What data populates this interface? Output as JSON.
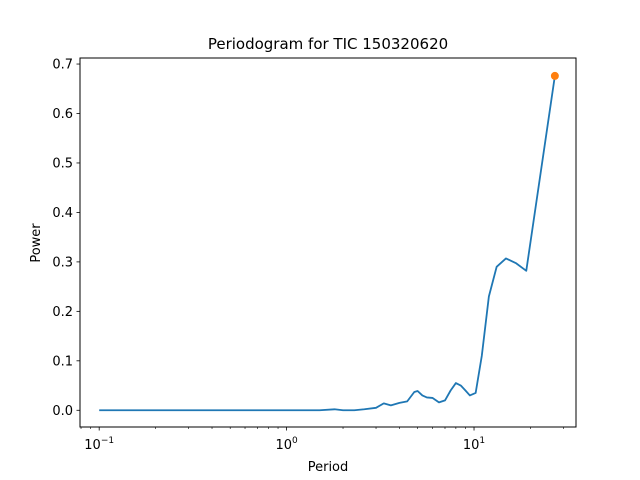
{
  "chart_data": {
    "type": "line",
    "title": "Periodogram for TIC 150320620",
    "xlabel": "Period",
    "ylabel": "Power",
    "xscale": "log",
    "xlim": [
      0.079,
      35
    ],
    "ylim": [
      -0.0338,
      0.7122
    ],
    "xticks": [
      {
        "value": 0.1,
        "base": "10",
        "exp": "−1"
      },
      {
        "value": 1,
        "base": "10",
        "exp": "0"
      },
      {
        "value": 10,
        "base": "10",
        "exp": "1"
      }
    ],
    "yticks": [
      {
        "value": 0.0,
        "label": "0.0"
      },
      {
        "value": 0.1,
        "label": "0.1"
      },
      {
        "value": 0.2,
        "label": "0.2"
      },
      {
        "value": 0.3,
        "label": "0.3"
      },
      {
        "value": 0.4,
        "label": "0.4"
      },
      {
        "value": 0.5,
        "label": "0.5"
      },
      {
        "value": 0.6,
        "label": "0.6"
      },
      {
        "value": 0.7,
        "label": "0.7"
      }
    ],
    "grid": false,
    "series": [
      {
        "color": "#1f77b4",
        "x": [
          0.1,
          0.2,
          0.3,
          0.5,
          0.7,
          0.9,
          1.0,
          1.2,
          1.5,
          1.8,
          2.0,
          2.3,
          2.6,
          3.0,
          3.3,
          3.6,
          4.0,
          4.4,
          4.8,
          5.0,
          5.3,
          5.6,
          6.0,
          6.5,
          7.0,
          7.5,
          8.0,
          8.5,
          9.0,
          9.5,
          10.2,
          11.0,
          12.0,
          13.2,
          14.8,
          16.8,
          19.0,
          27.0
        ],
        "y": [
          0.0,
          0.0,
          0.0,
          0.0,
          0.0,
          0.0,
          0.0,
          0.0,
          0.0,
          0.002,
          0.0,
          0.0,
          0.002,
          0.005,
          0.014,
          0.01,
          0.015,
          0.018,
          0.037,
          0.039,
          0.03,
          0.026,
          0.025,
          0.016,
          0.02,
          0.04,
          0.055,
          0.05,
          0.04,
          0.03,
          0.035,
          0.11,
          0.23,
          0.29,
          0.307,
          0.297,
          0.282,
          0.676
        ]
      }
    ],
    "highlight": {
      "x": 27.0,
      "y": 0.676,
      "color": "#ff7f0e"
    }
  }
}
